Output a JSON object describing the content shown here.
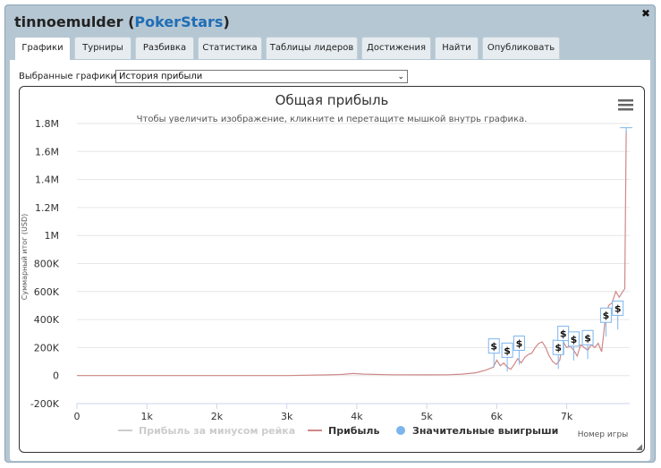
{
  "header": {
    "player": "tinnoemulder",
    "site": "PokerStars",
    "open_paren": "(",
    "close_paren": ")",
    "close_icon": "✖"
  },
  "tabs": [
    {
      "label": "Графики",
      "active": true
    },
    {
      "label": "Турниры"
    },
    {
      "label": "Разбивка"
    },
    {
      "label": "Статистика"
    },
    {
      "label": "Таблицы лидеров"
    },
    {
      "label": "Достижения"
    },
    {
      "label": "Найти"
    },
    {
      "label": "Опубликовать"
    }
  ],
  "selector": {
    "label": "Выбранные графики:",
    "value": "История прибыли"
  },
  "colors": {
    "profit": "#d08888",
    "rake": "#cccccc",
    "wins": "#7cb5ec",
    "grid": "#e6e6e6",
    "axis": "#ccd6eb"
  },
  "chart_data": {
    "type": "line",
    "title": "Общая прибыль",
    "subtitle": "Чтобы увеличить изображение, кликните и перетащите мышкой внутрь графика.",
    "ylabel": "Суммарный итог (USD)",
    "xlabel": "Номер игры",
    "ylim": [
      -200000,
      1800000
    ],
    "xlim": [
      0,
      7900
    ],
    "y_ticks": [
      -200000,
      0,
      200000,
      400000,
      600000,
      800000,
      1000000,
      1200000,
      1400000,
      1600000,
      1800000
    ],
    "y_tick_labels": [
      "-200K",
      "0",
      "200K",
      "400K",
      "600K",
      "800K",
      "1M",
      "1.2M",
      "1.4M",
      "1.6M",
      "1.8M"
    ],
    "x_ticks": [
      0,
      1000,
      2000,
      3000,
      4000,
      5000,
      6000,
      7000
    ],
    "x_tick_labels": [
      "0",
      "1k",
      "2k",
      "3k",
      "4k",
      "5k",
      "6k",
      "7k"
    ],
    "grid": true,
    "legend_position": "bottom",
    "series": [
      {
        "name": "Прибыль за минусом рейка",
        "muted": true,
        "points": []
      },
      {
        "name": "Прибыль",
        "points": [
          [
            0,
            0
          ],
          [
            1000,
            0
          ],
          [
            2000,
            0
          ],
          [
            3000,
            0
          ],
          [
            3600,
            5000
          ],
          [
            3800,
            8000
          ],
          [
            3950,
            15000
          ],
          [
            4100,
            10000
          ],
          [
            4500,
            6000
          ],
          [
            5000,
            5000
          ],
          [
            5300,
            6000
          ],
          [
            5500,
            10000
          ],
          [
            5700,
            20000
          ],
          [
            5850,
            40000
          ],
          [
            5950,
            60000
          ],
          [
            6000,
            110000
          ],
          [
            6050,
            70000
          ],
          [
            6100,
            90000
          ],
          [
            6150,
            60000
          ],
          [
            6200,
            45000
          ],
          [
            6250,
            80000
          ],
          [
            6300,
            120000
          ],
          [
            6350,
            90000
          ],
          [
            6400,
            130000
          ],
          [
            6450,
            150000
          ],
          [
            6500,
            160000
          ],
          [
            6550,
            200000
          ],
          [
            6600,
            230000
          ],
          [
            6650,
            240000
          ],
          [
            6700,
            200000
          ],
          [
            6750,
            140000
          ],
          [
            6800,
            100000
          ],
          [
            6850,
            80000
          ],
          [
            6900,
            110000
          ],
          [
            6950,
            240000
          ],
          [
            7000,
            200000
          ],
          [
            7050,
            210000
          ],
          [
            7100,
            180000
          ],
          [
            7150,
            140000
          ],
          [
            7200,
            220000
          ],
          [
            7250,
            200000
          ],
          [
            7300,
            180000
          ],
          [
            7350,
            220000
          ],
          [
            7400,
            200000
          ],
          [
            7450,
            230000
          ],
          [
            7500,
            170000
          ],
          [
            7550,
            400000
          ],
          [
            7600,
            500000
          ],
          [
            7650,
            520000
          ],
          [
            7700,
            600000
          ],
          [
            7750,
            560000
          ],
          [
            7800,
            600000
          ],
          [
            7830,
            620000
          ],
          [
            7850,
            1750000
          ]
        ]
      },
      {
        "name": "Значительные выигрыши",
        "points": [
          [
            5960,
            160000
          ],
          [
            6150,
            130000
          ],
          [
            6320,
            180000
          ],
          [
            6880,
            150000
          ],
          [
            6950,
            250000
          ],
          [
            7100,
            210000
          ],
          [
            7300,
            220000
          ],
          [
            7560,
            380000
          ],
          [
            7730,
            430000
          ],
          [
            7850,
            1770000
          ]
        ]
      }
    ],
    "marker_symbol": "$"
  }
}
